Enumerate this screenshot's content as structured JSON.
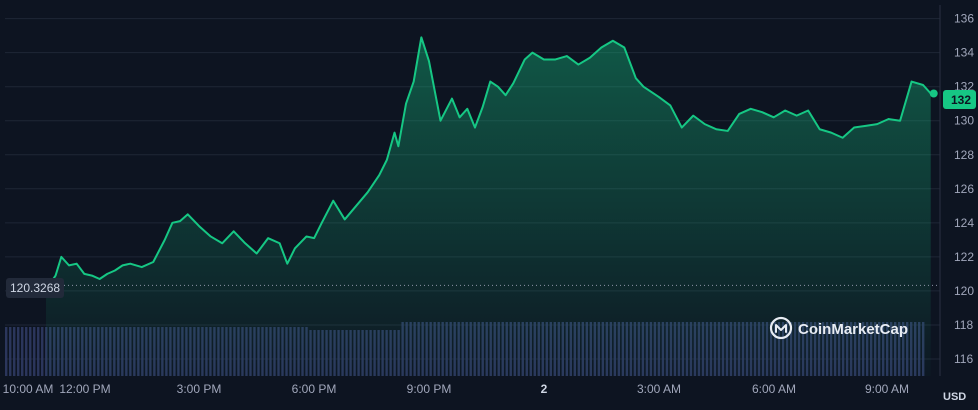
{
  "chart_data": {
    "type": "area",
    "currency_unit": "USD",
    "ylim": [
      115,
      136.8
    ],
    "y_ticks": [
      "116",
      "118",
      "120",
      "122",
      "124",
      "126",
      "128",
      "130",
      "132",
      "134",
      "136"
    ],
    "x_tick_labels": [
      "10:00 AM",
      "12:00 PM",
      "3:00 PM",
      "6:00 PM",
      "9:00 PM",
      "2",
      "3:00 AM",
      "6:00 AM",
      "9:00 AM"
    ],
    "open_price": 120.3268,
    "open_price_label": "120.3268",
    "last_price": 131.6,
    "last_price_label": "132",
    "grid": true,
    "watermark": "CoinMarketCap",
    "series": [
      {
        "t": [
          0,
          0.1,
          0.25,
          0.4,
          0.6,
          0.8,
          1.0,
          1.2,
          1.4,
          1.6,
          1.8,
          2.0,
          2.2,
          2.5,
          2.8,
          3.1,
          3.3,
          3.5,
          3.7,
          4.0,
          4.3,
          4.6,
          4.9,
          5.2,
          5.5,
          5.8,
          6.1,
          6.3,
          6.5,
          6.8,
          7.0,
          7.2,
          7.5,
          7.8,
          8.1,
          8.4,
          8.7,
          8.9,
          9.1,
          9.2,
          9.4,
          9.6,
          9.8,
          10.0,
          10.3,
          10.6,
          10.8,
          11.0,
          11.2,
          11.4,
          11.6,
          11.8,
          12.0,
          12.2,
          12.5,
          12.7,
          13.0,
          13.3,
          13.6,
          13.9,
          14.2,
          14.5,
          14.8,
          15.1,
          15.4,
          15.6,
          15.8,
          16.0,
          16.3,
          16.6,
          16.9,
          17.2,
          17.5,
          17.8,
          18.1,
          18.4,
          18.7,
          19.0,
          19.3,
          19.6,
          19.9,
          20.2,
          20.5,
          20.8,
          21.1,
          21.4,
          21.7,
          22.0,
          22.3,
          22.6,
          22.9,
          23.1
        ],
        "price": [
          120.2,
          120.4,
          120.9,
          122.0,
          121.5,
          121.6,
          121.0,
          120.9,
          120.7,
          121.0,
          121.2,
          121.5,
          121.6,
          121.4,
          121.7,
          123.0,
          124.0,
          124.1,
          124.5,
          123.8,
          123.2,
          122.8,
          123.5,
          122.8,
          122.2,
          123.1,
          122.8,
          121.6,
          122.5,
          123.2,
          123.1,
          124.0,
          125.3,
          124.2,
          125.0,
          125.8,
          126.8,
          127.7,
          129.3,
          128.5,
          131.0,
          132.3,
          134.9,
          133.5,
          130.0,
          131.3,
          130.2,
          130.7,
          129.6,
          130.8,
          132.3,
          132.0,
          131.5,
          132.2,
          133.6,
          134.0,
          133.6,
          133.6,
          133.8,
          133.3,
          133.7,
          134.3,
          134.7,
          134.3,
          132.5,
          132.0,
          131.7,
          131.4,
          130.9,
          129.6,
          130.3,
          129.8,
          129.5,
          129.4,
          130.4,
          130.7,
          130.5,
          130.2,
          130.6,
          130.3,
          130.6,
          129.5,
          129.3,
          129.0,
          129.6,
          129.7,
          129.8,
          130.1,
          130.0,
          132.3,
          132.1,
          131.6
        ]
      }
    ]
  }
}
